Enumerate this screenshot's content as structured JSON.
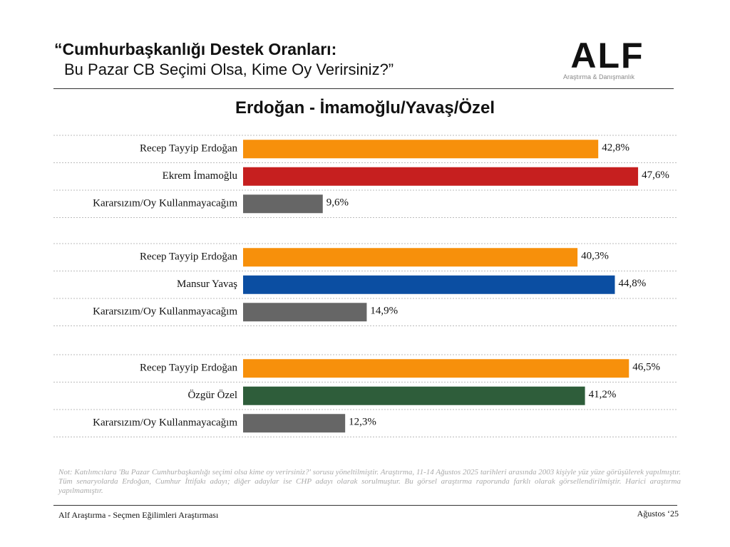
{
  "header": {
    "title_line1": "“Cumhurbaşkanlığı Destek Oranları:",
    "title_line2": "Bu Pazar CB Seçimi Olsa, Kime Oy Verirsiniz?”"
  },
  "logo": {
    "name": "ALF",
    "tagline": "Araştırma & Danışmanlık"
  },
  "chart_title": "Erdoğan - İmamoğlu/Yavaş/Özel",
  "chart_data": [
    {
      "type": "bar",
      "orientation": "horizontal",
      "categories": [
        "Recep Tayyip Erdoğan",
        "Ekrem İmamoğlu",
        "Kararsızım/Oy Kullanmayacağım"
      ],
      "values": [
        42.8,
        47.6,
        9.6
      ],
      "value_labels": [
        "42,8%",
        "47,6%",
        "9,6%"
      ],
      "colors": [
        "#f7900b",
        "#c61f1f",
        "#666666"
      ]
    },
    {
      "type": "bar",
      "orientation": "horizontal",
      "categories": [
        "Recep Tayyip Erdoğan",
        "Mansur Yavaş",
        "Kararsızım/Oy Kullanmayacağım"
      ],
      "values": [
        40.3,
        44.8,
        14.9
      ],
      "value_labels": [
        "40,3%",
        "44,8%",
        "14,9%"
      ],
      "colors": [
        "#f7900b",
        "#0b4ea2",
        "#666666"
      ]
    },
    {
      "type": "bar",
      "orientation": "horizontal",
      "categories": [
        "Recep Tayyip Erdoğan",
        "Özgür Özel",
        "Kararsızım/Oy Kullanmayacağım"
      ],
      "values": [
        46.5,
        41.2,
        12.3
      ],
      "value_labels": [
        "46,5%",
        "41,2%",
        "12,3%"
      ],
      "colors": [
        "#f7900b",
        "#2e5d3a",
        "#666666"
      ]
    }
  ],
  "note": "Not: Katılımcılara 'Bu Pazar Cumhurbaşkanlığı seçimi olsa kime oy verirsiniz?' sorusu yöneltilmiştir. Araştırma, 11-14 Ağustos 2025 tarihleri arasında 2003 kişiyle yüz yüze görüşülerek yapılmıştır. Tüm senaryolarda Erdoğan, Cumhur İttifakı adayı; diğer adaylar ise CHP adayı olarak sorulmuştur. Bu görsel araştırma raporunda farklı olarak görsellendirilmiştir. Harici araştırma yapılmamıştır.",
  "footer": {
    "left": "Alf Araştırma - Seçmen Eğilimleri Araştırması",
    "right": "Ağustos ‘25"
  }
}
